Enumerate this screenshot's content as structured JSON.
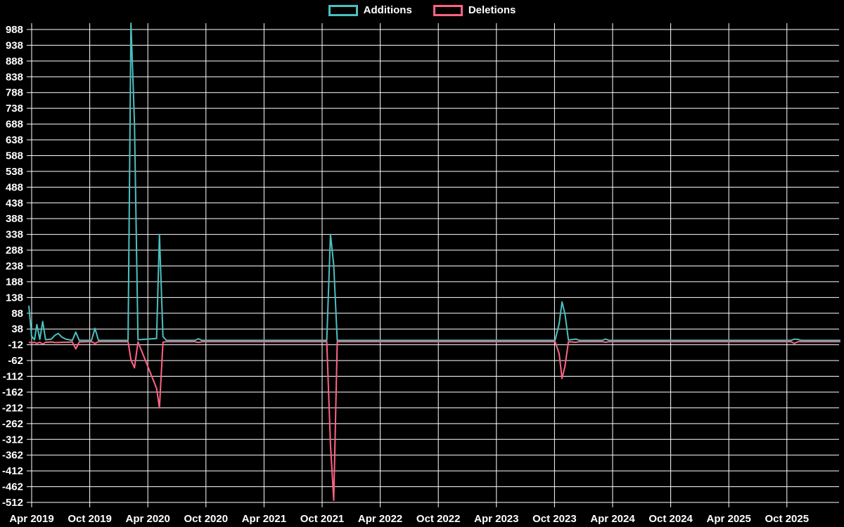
{
  "legend": {
    "items": [
      {
        "label": "Additions",
        "color": "#4bc0c0"
      },
      {
        "label": "Deletions",
        "color": "#ff6384"
      }
    ]
  },
  "chart_data": {
    "type": "line",
    "title": "",
    "background_color": "#000000",
    "grid": {
      "visible": true,
      "color": "#ffffff"
    },
    "legend_position": "top",
    "x_axis": {
      "tick_labels": [
        "Apr 2019",
        "Oct 2019",
        "Apr 2020",
        "Oct 2020",
        "Apr 2021",
        "Oct 2021",
        "Apr 2022",
        "Oct 2022",
        "Apr 2023",
        "Oct 2023",
        "Apr 2024",
        "Oct 2024",
        "Apr 2025",
        "Oct 2025"
      ],
      "tick_values": [
        2019.25,
        2019.75,
        2020.25,
        2020.75,
        2021.25,
        2021.75,
        2022.25,
        2022.75,
        2023.25,
        2023.75,
        2024.25,
        2024.75,
        2025.25,
        2025.75
      ]
    },
    "y_axis": {
      "min": -512,
      "max": 1008,
      "tick_step": 50,
      "tick_labels": [
        988,
        938,
        888,
        838,
        788,
        738,
        688,
        638,
        588,
        538,
        488,
        438,
        388,
        338,
        288,
        238,
        188,
        138,
        88,
        38,
        -12,
        -62,
        -112,
        -162,
        -212,
        -262,
        -312,
        -362,
        -412,
        -462,
        -512
      ]
    },
    "x": [
      2019.226,
      2019.25,
      2019.275,
      2019.295,
      2019.32,
      2019.345,
      2019.37,
      2019.42,
      2019.45,
      2019.48,
      2019.51,
      2019.545,
      2019.6,
      2019.63,
      2019.66,
      2019.765,
      2019.795,
      2019.825,
      2020.08,
      2020.105,
      2020.135,
      2020.165,
      2020.325,
      2020.35,
      2020.38,
      2020.41,
      2020.655,
      2020.685,
      2020.715,
      2021.79,
      2021.822,
      2021.85,
      2021.88,
      2023.755,
      2023.79,
      2023.815,
      2023.84,
      2023.87,
      2023.935,
      2023.965,
      2024.16,
      2024.19,
      2024.22,
      2025.785,
      2025.815,
      2025.845,
      2025.875,
      2026.21
    ],
    "series": [
      {
        "name": "Additions",
        "color": "#4bc0c0",
        "values": [
          112,
          15,
          4,
          52,
          5,
          62,
          4,
          6,
          18,
          24,
          12,
          6,
          2,
          28,
          2,
          2,
          40,
          2,
          2,
          1008,
          690,
          4,
          8,
          338,
          14,
          2,
          2,
          7,
          2,
          2,
          338,
          240,
          2,
          2,
          55,
          124,
          85,
          3,
          6,
          2,
          2,
          6,
          2,
          2,
          6,
          5,
          2,
          2
        ]
      },
      {
        "name": "Deletions",
        "color": "#ff6384",
        "values": [
          -4,
          -6,
          -4,
          -8,
          -4,
          -10,
          -4,
          -3,
          -5,
          -5,
          -4,
          -4,
          -3,
          -25,
          -3,
          -2,
          -8,
          -2,
          -2,
          -60,
          -85,
          -3,
          -150,
          -212,
          -4,
          -2,
          -2,
          -5,
          -2,
          -2,
          -330,
          -505,
          -2,
          -2,
          -40,
          -119,
          -80,
          -2,
          -4,
          -2,
          -2,
          -4,
          -2,
          -2,
          -8,
          -2,
          -2,
          -2
        ]
      }
    ]
  }
}
